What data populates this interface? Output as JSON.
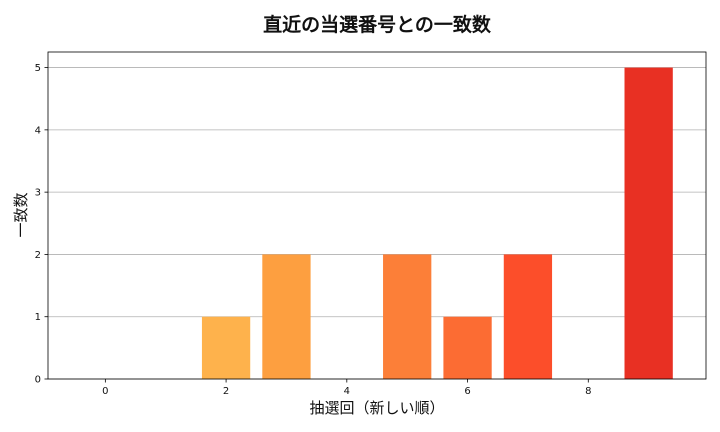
{
  "chart_data": {
    "type": "bar",
    "title": "直近の当選番号との一致数",
    "xlabel": "抽選回（新しい順）",
    "ylabel": "一致数",
    "x": [
      0,
      1,
      2,
      3,
      4,
      5,
      6,
      7,
      8,
      9
    ],
    "values": [
      0,
      0,
      1,
      2,
      0,
      2,
      1,
      2,
      0,
      5
    ],
    "colors": [
      "#fee08b",
      "#fed976",
      "#feb24c",
      "#fd9f40",
      "#fd8d3c",
      "#fc7f38",
      "#fc6c33",
      "#fc4e2a",
      "#f03b20",
      "#e83023"
    ],
    "xlim": [
      -0.95,
      9.95
    ],
    "ylim": [
      0,
      5.25
    ],
    "xticks": [
      0,
      2,
      4,
      6,
      8
    ],
    "yticks": [
      0,
      1,
      2,
      3,
      4,
      5
    ],
    "grid": "y"
  }
}
